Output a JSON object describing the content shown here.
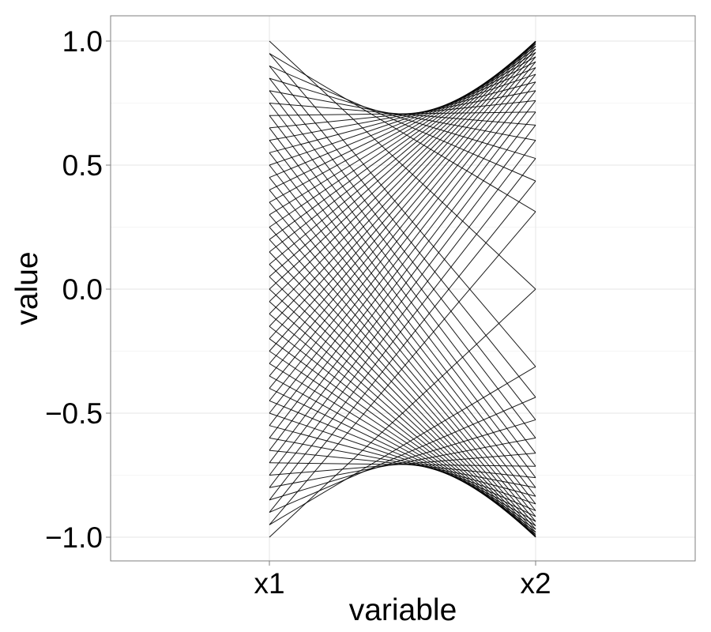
{
  "chart_data": {
    "type": "line",
    "subtype": "parallel-coordinates",
    "title": "",
    "xlabel": "variable",
    "ylabel": "value",
    "categories": [
      "x1",
      "x2"
    ],
    "ylim": [
      -1.1,
      1.1
    ],
    "yticks": [
      -1.0,
      -0.5,
      0.0,
      0.5,
      1.0
    ],
    "ytick_labels": [
      "−1.0",
      "−0.5",
      "0.0",
      "0.5",
      "1.0"
    ],
    "grid": true,
    "legend": "none",
    "line_color": "#000000",
    "series": [
      {
        "values": [
          1.0,
          0.0
        ]
      },
      {
        "values": [
          0.95,
          0.3122
        ]
      },
      {
        "values": [
          0.9,
          0.4359
        ]
      },
      {
        "values": [
          0.85,
          0.5268
        ]
      },
      {
        "values": [
          0.8,
          0.6
        ]
      },
      {
        "values": [
          0.75,
          0.6614
        ]
      },
      {
        "values": [
          0.7,
          0.7141
        ]
      },
      {
        "values": [
          0.65,
          0.7599
        ]
      },
      {
        "values": [
          0.6,
          0.8
        ]
      },
      {
        "values": [
          0.55,
          0.8352
        ]
      },
      {
        "values": [
          0.5,
          0.866
        ]
      },
      {
        "values": [
          0.45,
          0.893
        ]
      },
      {
        "values": [
          0.4,
          0.9165
        ]
      },
      {
        "values": [
          0.35,
          0.9367
        ]
      },
      {
        "values": [
          0.3,
          0.9539
        ]
      },
      {
        "values": [
          0.25,
          0.9682
        ]
      },
      {
        "values": [
          0.2,
          0.9798
        ]
      },
      {
        "values": [
          0.15,
          0.9887
        ]
      },
      {
        "values": [
          0.1,
          0.995
        ]
      },
      {
        "values": [
          0.05,
          0.9987
        ]
      },
      {
        "values": [
          0.0,
          1.0
        ]
      },
      {
        "values": [
          -0.05,
          0.9987
        ]
      },
      {
        "values": [
          -0.1,
          0.995
        ]
      },
      {
        "values": [
          -0.15,
          0.9887
        ]
      },
      {
        "values": [
          -0.2,
          0.9798
        ]
      },
      {
        "values": [
          -0.25,
          0.9682
        ]
      },
      {
        "values": [
          -0.3,
          0.9539
        ]
      },
      {
        "values": [
          -0.35,
          0.9367
        ]
      },
      {
        "values": [
          -0.4,
          0.9165
        ]
      },
      {
        "values": [
          -0.45,
          0.893
        ]
      },
      {
        "values": [
          -0.5,
          0.866
        ]
      },
      {
        "values": [
          -0.55,
          0.8352
        ]
      },
      {
        "values": [
          -0.6,
          0.8
        ]
      },
      {
        "values": [
          -0.65,
          0.7599
        ]
      },
      {
        "values": [
          -0.7,
          0.7141
        ]
      },
      {
        "values": [
          -0.75,
          0.6614
        ]
      },
      {
        "values": [
          -0.8,
          0.6
        ]
      },
      {
        "values": [
          -0.85,
          0.5268
        ]
      },
      {
        "values": [
          -0.9,
          0.4359
        ]
      },
      {
        "values": [
          -0.95,
          0.3122
        ]
      },
      {
        "values": [
          -1.0,
          0.0
        ]
      },
      {
        "values": [
          -0.95,
          -0.3122
        ]
      },
      {
        "values": [
          -0.9,
          -0.4359
        ]
      },
      {
        "values": [
          -0.85,
          -0.5268
        ]
      },
      {
        "values": [
          -0.8,
          -0.6
        ]
      },
      {
        "values": [
          -0.75,
          -0.6614
        ]
      },
      {
        "values": [
          -0.7,
          -0.7141
        ]
      },
      {
        "values": [
          -0.65,
          -0.7599
        ]
      },
      {
        "values": [
          -0.6,
          -0.8
        ]
      },
      {
        "values": [
          -0.55,
          -0.8352
        ]
      },
      {
        "values": [
          -0.5,
          -0.866
        ]
      },
      {
        "values": [
          -0.45,
          -0.893
        ]
      },
      {
        "values": [
          -0.4,
          -0.9165
        ]
      },
      {
        "values": [
          -0.35,
          -0.9367
        ]
      },
      {
        "values": [
          -0.3,
          -0.9539
        ]
      },
      {
        "values": [
          -0.25,
          -0.9682
        ]
      },
      {
        "values": [
          -0.2,
          -0.9798
        ]
      },
      {
        "values": [
          -0.15,
          -0.9887
        ]
      },
      {
        "values": [
          -0.1,
          -0.995
        ]
      },
      {
        "values": [
          -0.05,
          -0.9987
        ]
      },
      {
        "values": [
          0.0,
          -1.0
        ]
      },
      {
        "values": [
          0.05,
          -0.9987
        ]
      },
      {
        "values": [
          0.1,
          -0.995
        ]
      },
      {
        "values": [
          0.15,
          -0.9887
        ]
      },
      {
        "values": [
          0.2,
          -0.9798
        ]
      },
      {
        "values": [
          0.25,
          -0.9682
        ]
      },
      {
        "values": [
          0.3,
          -0.9539
        ]
      },
      {
        "values": [
          0.35,
          -0.9367
        ]
      },
      {
        "values": [
          0.4,
          -0.9165
        ]
      },
      {
        "values": [
          0.45,
          -0.893
        ]
      },
      {
        "values": [
          0.5,
          -0.866
        ]
      },
      {
        "values": [
          0.55,
          -0.8352
        ]
      },
      {
        "values": [
          0.6,
          -0.8
        ]
      },
      {
        "values": [
          0.65,
          -0.7599
        ]
      },
      {
        "values": [
          0.7,
          -0.7141
        ]
      },
      {
        "values": [
          0.75,
          -0.6614
        ]
      },
      {
        "values": [
          0.8,
          -0.6
        ]
      },
      {
        "values": [
          0.85,
          -0.5268
        ]
      },
      {
        "values": [
          0.9,
          -0.4359
        ]
      },
      {
        "values": [
          0.95,
          -0.3122
        ]
      }
    ]
  }
}
